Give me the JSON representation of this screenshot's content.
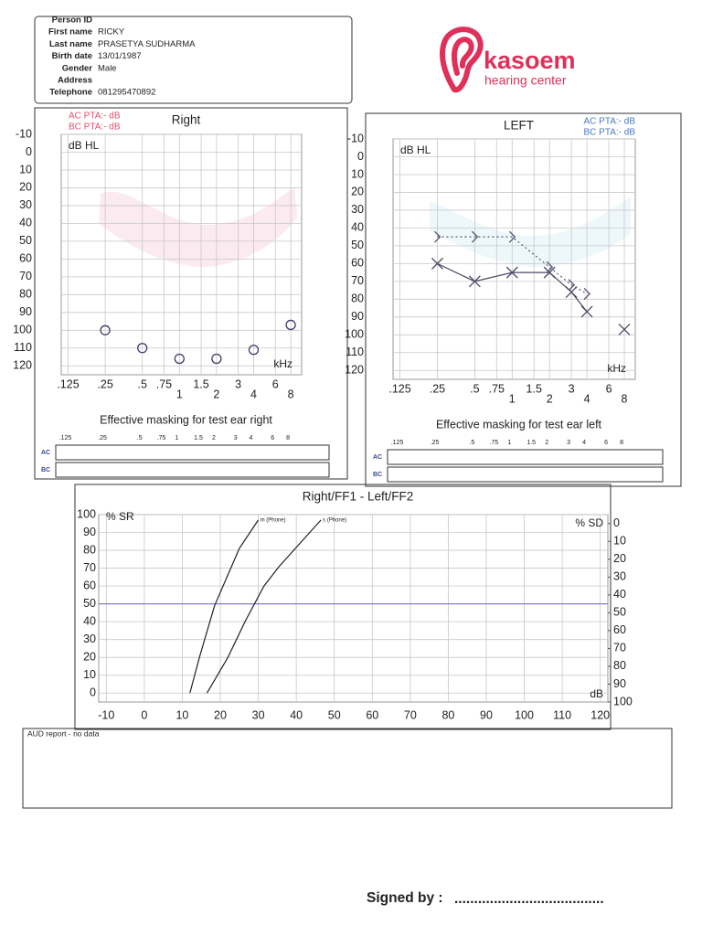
{
  "patient": {
    "rows": [
      [
        "Person ID"
      ],
      [
        "First name",
        "RICKY"
      ],
      [
        "Last name",
        "PRASETYA SUDHARMA"
      ],
      [
        "Birth date",
        "13/01/1987"
      ],
      [
        "Gender",
        "Male"
      ],
      [
        "Address"
      ],
      [
        "Telephone",
        "081295470892"
      ]
    ]
  },
  "logo": {
    "name": "kasoem",
    "subtitle": "hearing center"
  },
  "chart_data": [
    {
      "type": "audiogram",
      "title": "Right",
      "ylabel": "dB HL",
      "xlabel": "kHz",
      "annotations": [
        "AC PTA:- dB",
        "BC PTA:- dB"
      ],
      "annotation_color": "#e0506a",
      "annotation_corner": "upper left",
      "xscale": "log",
      "xlim": [
        0.11,
        9.8
      ],
      "xticks": [
        {
          "value": 0.125,
          "label": ".125"
        },
        {
          "value": 0.25,
          "label": ".25"
        },
        {
          "value": 0.5,
          "label": ".5"
        },
        {
          "value": 0.75,
          "label": ".75"
        },
        1,
        1.5,
        2,
        3,
        4,
        6,
        8
      ],
      "ylim": [
        125,
        -10
      ],
      "yticks": [
        -10,
        0,
        10,
        20,
        30,
        40,
        50,
        60,
        70,
        80,
        90,
        100,
        110,
        120
      ],
      "grid": true,
      "series": [
        {
          "marker": "circle",
          "color": "#3d3d6b",
          "line": "none",
          "x": [
            0.25,
            0.5,
            1,
            2,
            4,
            8
          ],
          "values": [
            100,
            110,
            116,
            116,
            111,
            97
          ]
        }
      ]
    },
    {
      "type": "audiogram",
      "title": "LEFT",
      "ylabel": "dB HL",
      "xlabel": "kHz",
      "annotations": [
        "AC PTA:- dB",
        "BC PTA:- dB"
      ],
      "annotation_color": "#4a78c0",
      "annotation_corner": "upper right",
      "xscale": "log",
      "xlim": [
        0.11,
        9.8
      ],
      "xticks": [
        {
          "value": 0.125,
          "label": ".125"
        },
        {
          "value": 0.25,
          "label": ".25"
        },
        {
          "value": 0.5,
          "label": ".5"
        },
        {
          "value": 0.75,
          "label": ".75"
        },
        1,
        1.5,
        2,
        3,
        4,
        6,
        8
      ],
      "ylim": [
        125,
        -10
      ],
      "yticks": [
        -10,
        0,
        10,
        20,
        30,
        40,
        50,
        60,
        70,
        80,
        90,
        100,
        110,
        120
      ],
      "grid": true,
      "series": [
        {
          "marker": "x",
          "color": "#4a4a66",
          "line": "solid",
          "x": [
            0.25,
            0.5,
            1,
            2,
            3,
            4,
            6,
            8
          ],
          "values": [
            60,
            70,
            65,
            65,
            76,
            87,
            null,
            97
          ]
        },
        {
          "marker": "chevron",
          "color": "#55557a",
          "line": "dotted",
          "x": [
            0.25,
            0.5,
            1,
            2,
            3,
            4
          ],
          "values": [
            45,
            45,
            45,
            62,
            72,
            77
          ]
        }
      ]
    },
    {
      "type": "line",
      "title": "Right/FF1 - Left/FF2",
      "ylabel": "% SR",
      "y2label": "% SD",
      "xlabel": "dB",
      "xlim": [
        -12,
        122
      ],
      "xticks": [
        -10,
        0,
        10,
        20,
        30,
        40,
        50,
        60,
        70,
        80,
        90,
        100,
        110,
        120
      ],
      "ylim": [
        -5,
        100
      ],
      "yticks": [
        0,
        10,
        20,
        30,
        40,
        50,
        60,
        70,
        80,
        90,
        100
      ],
      "y2lim": [
        100,
        -5
      ],
      "y2ticks": [
        0,
        10,
        20,
        30,
        40,
        50,
        60,
        70,
        80,
        90,
        100
      ],
      "grid": true,
      "reference_line": 50,
      "reference_color": "#8080c8",
      "series": [
        {
          "name": "m (Phone)",
          "color": "#222222",
          "x": [
            12,
            14.5,
            18.5,
            25,
            30
          ],
          "values": [
            0,
            20,
            49,
            81,
            97
          ]
        },
        {
          "name": "s (Phone)",
          "color": "#222222",
          "x": [
            16.5,
            22,
            26.5,
            31.5,
            35.5,
            46.5
          ],
          "values": [
            0,
            20,
            40,
            60,
            71,
            97
          ]
        }
      ]
    }
  ],
  "masking": [
    {
      "title": "Effective masking for test ear right",
      "freqs": [
        ".125",
        ".25",
        ".5",
        ".75",
        "1",
        "1.5",
        "2",
        "3",
        "4",
        "6",
        "8"
      ],
      "rows": [
        "AC",
        "BC"
      ]
    },
    {
      "title": "Effective masking for test ear left",
      "freqs": [
        ".125",
        ".25",
        ".5",
        ".75",
        "1",
        "1.5",
        "2",
        "3",
        "4",
        "6",
        "8"
      ],
      "rows": [
        "AC",
        "BC"
      ]
    }
  ],
  "report": "AUD report - no data",
  "signature": {
    "label": "Signed by :",
    "line": "......................................"
  }
}
